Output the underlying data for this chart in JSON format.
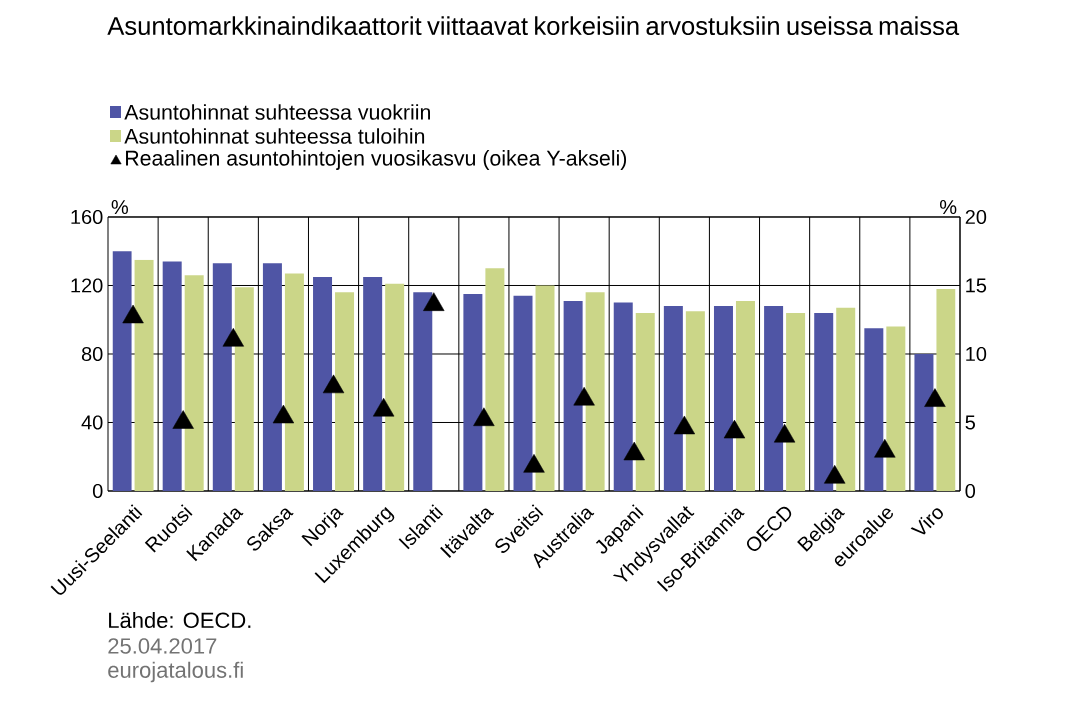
{
  "chart_data": {
    "type": "bar",
    "title": "Asuntomarkkinaindikaattorit viittaavat korkeisiin arvostuksiin useissa maissa",
    "categories": [
      "Uusi-Seelanti",
      "Ruotsi",
      "Kanada",
      "Saksa",
      "Norja",
      "Luxemburg",
      "Islanti",
      "Itävalta",
      "Sveitsi",
      "Australia",
      "Japani",
      "Yhdysvallat",
      "Iso-Britannia",
      "OECD",
      "Belgia",
      "euroalue",
      "Viro"
    ],
    "series": [
      {
        "name": "Asuntohinnat suhteessa vuokriin",
        "color": "#4f55a5",
        "values": [
          140,
          134,
          133,
          133,
          125,
          125,
          116,
          115,
          114,
          111,
          110,
          108,
          108,
          108,
          104,
          95,
          80
        ]
      },
      {
        "name": "Asuntohinnat suhteessa tuloihin",
        "color": "#cbd688",
        "values": [
          135,
          126,
          119,
          127,
          116,
          121,
          null,
          130,
          120,
          116,
          104,
          105,
          111,
          104,
          107,
          96,
          118
        ]
      },
      {
        "name": "Reaalinen asuntohintojen vuosikasvu (oikea Y-akseli)",
        "type": "scatter",
        "axis": "y2",
        "marker": "triangle",
        "color": "#000000",
        "values": [
          12.7,
          5.0,
          11.0,
          5.4,
          7.6,
          5.9,
          13.6,
          5.2,
          1.8,
          6.7,
          2.7,
          4.6,
          4.3,
          4.0,
          1.0,
          2.9,
          6.6
        ]
      }
    ],
    "ylabel": "%",
    "y2label": "%",
    "ylim": [
      0,
      160
    ],
    "yticks": [
      0,
      40,
      80,
      120,
      160
    ],
    "y2lim": [
      0,
      20
    ],
    "y2ticks": [
      0,
      5,
      10,
      15,
      20
    ],
    "grid": true,
    "legend": "top left",
    "annotations": [
      "Lähde:  OECD.",
      "25.04.2017",
      "eurojatalous.fi"
    ]
  }
}
